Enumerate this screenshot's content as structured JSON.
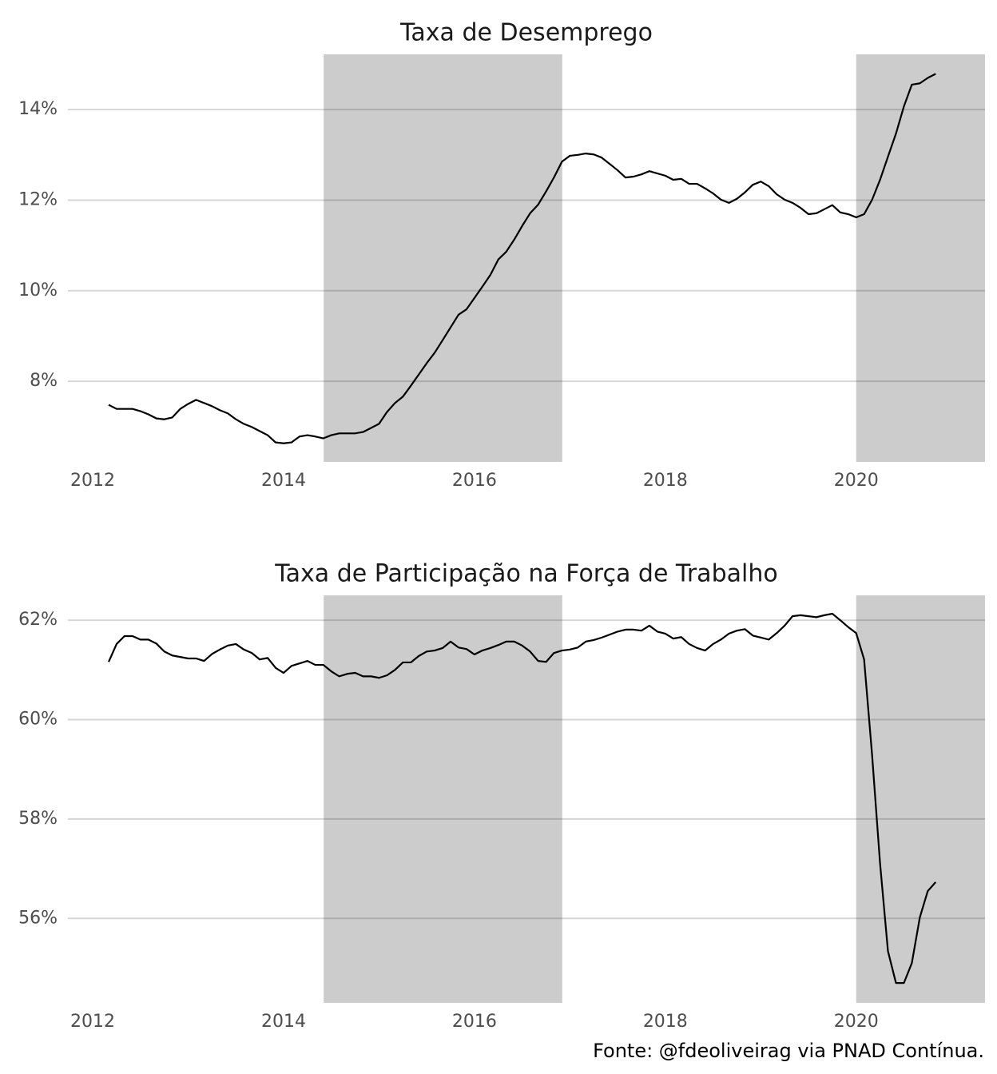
{
  "chart_data": [
    {
      "type": "line",
      "title": "Taxa de Desemprego",
      "color": "#000000",
      "x": [
        2012.167,
        2012.25,
        2012.333,
        2012.417,
        2012.5,
        2012.583,
        2012.667,
        2012.75,
        2012.833,
        2012.917,
        2013.0,
        2013.083,
        2013.167,
        2013.25,
        2013.333,
        2013.417,
        2013.5,
        2013.583,
        2013.667,
        2013.75,
        2013.833,
        2013.917,
        2014.0,
        2014.083,
        2014.167,
        2014.25,
        2014.333,
        2014.417,
        2014.5,
        2014.583,
        2014.667,
        2014.75,
        2014.833,
        2014.917,
        2015.0,
        2015.083,
        2015.167,
        2015.25,
        2015.333,
        2015.417,
        2015.5,
        2015.583,
        2015.667,
        2015.75,
        2015.833,
        2015.917,
        2016.0,
        2016.083,
        2016.167,
        2016.25,
        2016.333,
        2016.417,
        2016.5,
        2016.583,
        2016.667,
        2016.75,
        2016.833,
        2016.917,
        2017.0,
        2017.083,
        2017.167,
        2017.25,
        2017.333,
        2017.417,
        2017.5,
        2017.583,
        2017.667,
        2017.75,
        2017.833,
        2017.917,
        2018.0,
        2018.083,
        2018.167,
        2018.25,
        2018.333,
        2018.417,
        2018.5,
        2018.583,
        2018.667,
        2018.75,
        2018.833,
        2018.917,
        2019.0,
        2019.083,
        2019.167,
        2019.25,
        2019.333,
        2019.417,
        2019.5,
        2019.583,
        2019.667,
        2019.75,
        2019.833,
        2019.917,
        2020.0,
        2020.083,
        2020.167,
        2020.25,
        2020.333,
        2020.417,
        2020.5,
        2020.583,
        2020.667,
        2020.75,
        2020.833
      ],
      "values": [
        7.48,
        7.39,
        7.39,
        7.39,
        7.34,
        7.27,
        7.18,
        7.16,
        7.2,
        7.39,
        7.5,
        7.59,
        7.52,
        7.45,
        7.36,
        7.29,
        7.16,
        7.06,
        6.99,
        6.9,
        6.81,
        6.65,
        6.63,
        6.65,
        6.78,
        6.81,
        6.78,
        6.74,
        6.81,
        6.85,
        6.85,
        6.85,
        6.88,
        6.97,
        7.06,
        7.32,
        7.52,
        7.66,
        7.9,
        8.15,
        8.4,
        8.63,
        8.91,
        9.19,
        9.47,
        9.59,
        9.84,
        10.09,
        10.35,
        10.69,
        10.86,
        11.13,
        11.43,
        11.71,
        11.9,
        12.19,
        12.5,
        12.85,
        12.98,
        13.0,
        13.03,
        13.01,
        12.94,
        12.8,
        12.66,
        12.5,
        12.52,
        12.57,
        12.64,
        12.59,
        12.54,
        12.45,
        12.47,
        12.36,
        12.36,
        12.26,
        12.15,
        12.01,
        11.94,
        12.03,
        12.17,
        12.34,
        12.41,
        12.31,
        12.13,
        12.01,
        11.94,
        11.83,
        11.69,
        11.71,
        11.8,
        11.89,
        11.73,
        11.69,
        11.62,
        11.69,
        12.01,
        12.45,
        12.96,
        13.47,
        14.07,
        14.55,
        14.58,
        14.7,
        14.79
      ],
      "xlim": [
        2011.74,
        2021.35
      ],
      "xticks": [
        2012,
        2014,
        2016,
        2018,
        2020
      ],
      "ylim": [
        6.22,
        15.22
      ],
      "yticks": [
        {
          "value": 8,
          "label": "8%"
        },
        {
          "value": 10,
          "label": "10%"
        },
        {
          "value": 12,
          "label": "12%"
        },
        {
          "value": 14,
          "label": "14%"
        }
      ],
      "grid": true,
      "shaded_regions": [
        [
          2014.42,
          2016.92
        ],
        [
          2020.0,
          2021.35
        ]
      ],
      "shade_color": "#cccccc"
    },
    {
      "type": "line",
      "title": "Taxa de Participação na Força de Trabalho",
      "color": "#000000",
      "x": [
        2012.167,
        2012.25,
        2012.333,
        2012.417,
        2012.5,
        2012.583,
        2012.667,
        2012.75,
        2012.833,
        2012.917,
        2013.0,
        2013.083,
        2013.167,
        2013.25,
        2013.333,
        2013.417,
        2013.5,
        2013.583,
        2013.667,
        2013.75,
        2013.833,
        2013.917,
        2014.0,
        2014.083,
        2014.167,
        2014.25,
        2014.333,
        2014.417,
        2014.5,
        2014.583,
        2014.667,
        2014.75,
        2014.833,
        2014.917,
        2015.0,
        2015.083,
        2015.167,
        2015.25,
        2015.333,
        2015.417,
        2015.5,
        2015.583,
        2015.667,
        2015.75,
        2015.833,
        2015.917,
        2016.0,
        2016.083,
        2016.167,
        2016.25,
        2016.333,
        2016.417,
        2016.5,
        2016.583,
        2016.667,
        2016.75,
        2016.833,
        2016.917,
        2017.0,
        2017.083,
        2017.167,
        2017.25,
        2017.333,
        2017.417,
        2017.5,
        2017.583,
        2017.667,
        2017.75,
        2017.833,
        2017.917,
        2018.0,
        2018.083,
        2018.167,
        2018.25,
        2018.333,
        2018.417,
        2018.5,
        2018.583,
        2018.667,
        2018.75,
        2018.833,
        2018.917,
        2019.0,
        2019.083,
        2019.167,
        2019.25,
        2019.333,
        2019.417,
        2019.5,
        2019.583,
        2019.667,
        2019.75,
        2019.833,
        2019.917,
        2020.0,
        2020.083,
        2020.167,
        2020.25,
        2020.333,
        2020.417,
        2020.5,
        2020.583,
        2020.667,
        2020.75,
        2020.833
      ],
      "values": [
        61.16,
        61.52,
        61.68,
        61.68,
        61.61,
        61.61,
        61.53,
        61.37,
        61.29,
        61.26,
        61.23,
        61.23,
        61.18,
        61.32,
        61.41,
        61.49,
        61.52,
        61.41,
        61.34,
        61.21,
        61.24,
        61.04,
        60.94,
        61.08,
        61.13,
        61.18,
        61.1,
        61.1,
        60.97,
        60.87,
        60.92,
        60.94,
        60.87,
        60.87,
        60.84,
        60.89,
        61.0,
        61.15,
        61.15,
        61.28,
        61.37,
        61.39,
        61.44,
        61.57,
        61.45,
        61.42,
        61.31,
        61.39,
        61.44,
        61.5,
        61.57,
        61.57,
        61.49,
        61.37,
        61.18,
        61.16,
        61.34,
        61.39,
        61.41,
        61.45,
        61.57,
        61.6,
        61.65,
        61.71,
        61.77,
        61.81,
        61.81,
        61.79,
        61.89,
        61.77,
        61.73,
        61.63,
        61.66,
        61.52,
        61.44,
        61.39,
        61.52,
        61.61,
        61.73,
        61.79,
        61.82,
        61.69,
        61.65,
        61.61,
        61.74,
        61.89,
        62.08,
        62.1,
        62.08,
        62.06,
        62.1,
        62.13,
        62.0,
        61.86,
        61.74,
        61.21,
        59.28,
        57.11,
        55.34,
        54.7,
        54.7,
        55.1,
        56.02,
        56.55,
        56.73
      ],
      "xlim": [
        2011.74,
        2021.35
      ],
      "xticks": [
        2012,
        2014,
        2016,
        2018,
        2020
      ],
      "ylim": [
        54.3,
        62.5
      ],
      "yticks": [
        {
          "value": 56,
          "label": "56%"
        },
        {
          "value": 58,
          "label": "58%"
        },
        {
          "value": 60,
          "label": "60%"
        },
        {
          "value": 62,
          "label": "62%"
        }
      ],
      "grid": true,
      "shaded_regions": [
        [
          2014.42,
          2016.92
        ],
        [
          2020.0,
          2021.35
        ]
      ],
      "shade_color": "#cccccc"
    }
  ],
  "caption": "Fonte: @fdeoliveirag via PNAD Contínua."
}
